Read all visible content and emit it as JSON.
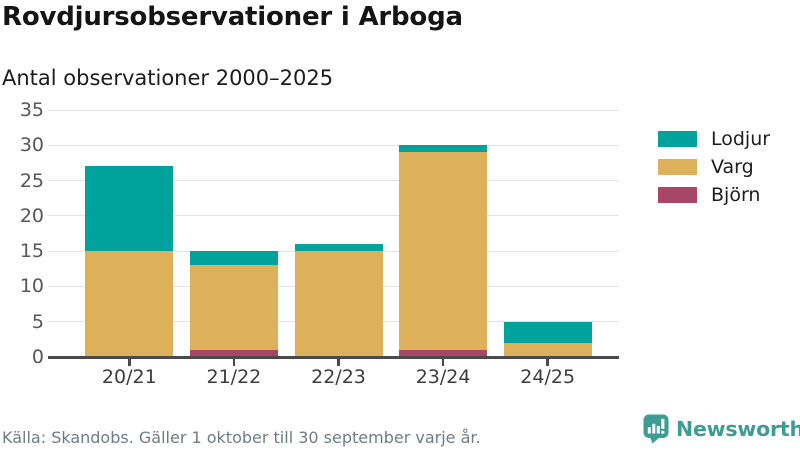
{
  "header": {
    "title": "Rovdjursobservationer i Arboga",
    "subtitle": "Antal observationer 2000–2025"
  },
  "chart_data": {
    "type": "bar",
    "stacked": true,
    "title": "Rovdjursobservationer i Arboga",
    "subtitle": "Antal observationer 2000–2025",
    "categories": [
      "20/21",
      "21/22",
      "22/23",
      "23/24",
      "24/25"
    ],
    "series": [
      {
        "name": "Björn",
        "color": "#A74667",
        "values": [
          0,
          1,
          0,
          1,
          0
        ]
      },
      {
        "name": "Varg",
        "color": "#DDB05C",
        "values": [
          15,
          12,
          15,
          28,
          2
        ]
      },
      {
        "name": "Lodjur",
        "color": "#00A39B",
        "values": [
          12,
          2,
          1,
          1,
          3
        ]
      }
    ],
    "stack_order_bottom_to_top": [
      "Björn",
      "Varg",
      "Lodjur"
    ],
    "xlabel": "",
    "ylabel": "",
    "ylim": [
      0,
      35
    ],
    "yticks": [
      0,
      5,
      10,
      15,
      20,
      25,
      30,
      35
    ],
    "grid": true,
    "legend": {
      "position": "right",
      "items": [
        {
          "label": "Lodjur",
          "color": "#00A39B"
        },
        {
          "label": "Varg",
          "color": "#DDB05C"
        },
        {
          "label": "Björn",
          "color": "#A74667"
        }
      ]
    }
  },
  "footer": {
    "source": "Källa: Skandobs. Gäller 1 oktober till 30 september varje år.",
    "brand": "Newsworthy"
  },
  "colors": {
    "accent_teal": "#00A39B",
    "accent_gold": "#DDB05C",
    "accent_berry": "#A74667",
    "brand_teal": "#3D9C95",
    "axis": "#4A4A4A",
    "gridline": "#E3E3E3",
    "tick_label": "#575757",
    "text": "#141414",
    "muted_text": "#6F7C85"
  }
}
